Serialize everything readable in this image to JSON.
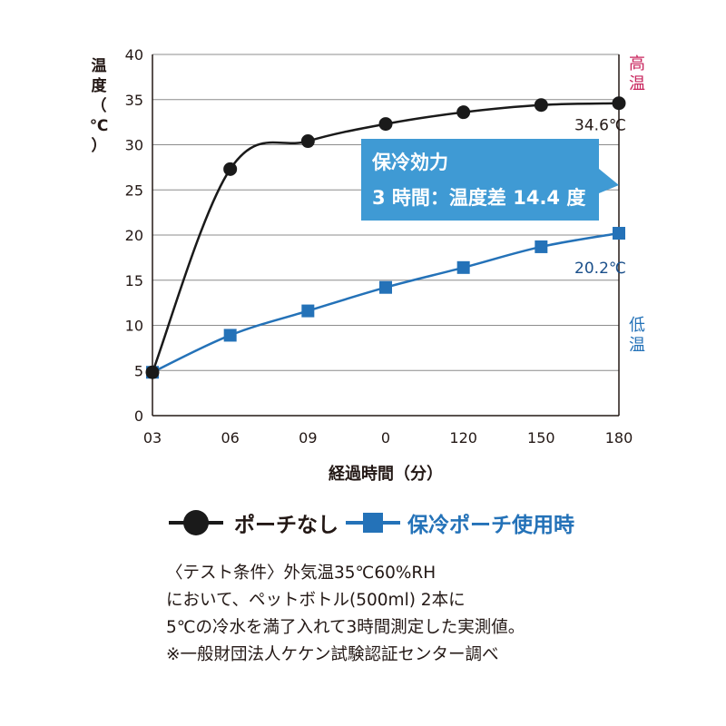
{
  "chart_data": {
    "type": "line",
    "x_tick_labels": [
      "03",
      "06",
      "09",
      "0",
      "120",
      "150",
      "180"
    ],
    "y_ticks": [
      0,
      5,
      10,
      15,
      20,
      25,
      30,
      35,
      40
    ],
    "ylim": [
      0,
      40
    ],
    "ylabel_chars": [
      "温",
      "度",
      "（",
      "℃",
      "）"
    ],
    "xlabel": "経過時間（分）",
    "series": [
      {
        "name": "ポーチなし",
        "color": "#1a1a1a",
        "marker": "circle",
        "values": [
          4.8,
          27.3,
          30.4,
          32.3,
          33.6,
          34.4,
          34.6
        ]
      },
      {
        "name": "保冷ポーチ使用時",
        "color": "#2472b8",
        "marker": "square",
        "values": [
          4.8,
          8.9,
          11.6,
          14.2,
          16.4,
          18.7,
          20.2
        ]
      }
    ],
    "end_labels": [
      "34.6℃",
      "20.2℃"
    ],
    "side_labels": {
      "high": {
        "chars": [
          "高",
          "温"
        ],
        "color": "#c8245c"
      },
      "low": {
        "chars": [
          "低",
          "温"
        ],
        "color": "#2472b8"
      }
    },
    "callout": {
      "title": "保冷効力",
      "body": "3 時間：温度差 14.4 度",
      "color": "#3f9ad4"
    },
    "grid": "horizontal"
  },
  "legend": {
    "item1": "ポーチなし",
    "item2": "保冷ポーチ使用時"
  },
  "note": {
    "line1": "〈テスト条件〉外気温35℃60%RH",
    "line2": "において、ペットボトル(500ml) 2本に",
    "line3": "5℃の冷水を満了入れて3時間測定した実測値。",
    "line4": "※一般財団法人ケケン試験認証センター調べ"
  }
}
